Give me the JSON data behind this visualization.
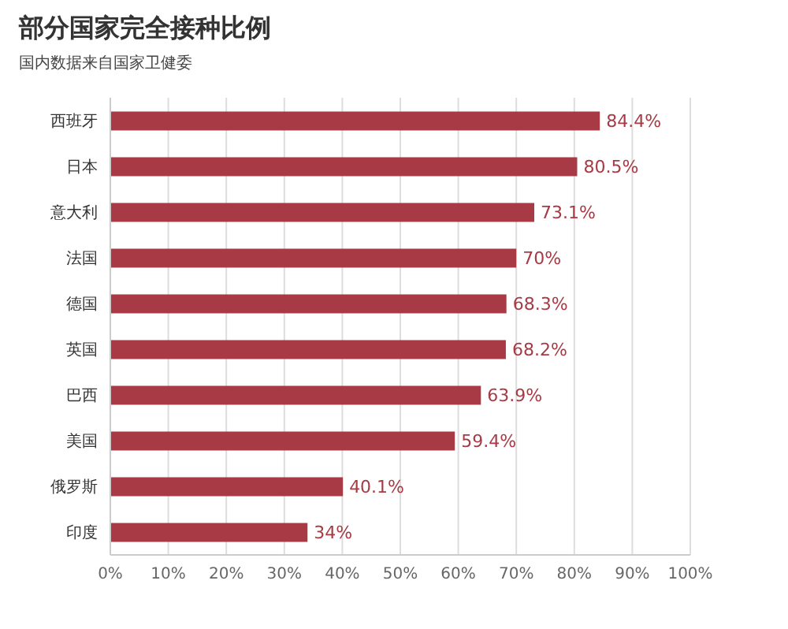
{
  "chart_data": {
    "type": "bar",
    "orientation": "horizontal",
    "title": "部分国家完全接种比例",
    "subtitle": "国内数据来自国家卫健委",
    "categories": [
      "西班牙",
      "日本",
      "意大利",
      "法国",
      "德国",
      "英国",
      "巴西",
      "美国",
      "俄罗斯",
      "印度"
    ],
    "values": [
      84.4,
      80.5,
      73.1,
      70,
      68.3,
      68.2,
      63.9,
      59.4,
      40.1,
      34
    ],
    "value_labels": [
      "84.4%",
      "80.5%",
      "73.1%",
      "70%",
      "68.3%",
      "68.2%",
      "63.9%",
      "59.4%",
      "40.1%",
      "34%"
    ],
    "color": "#a83a45",
    "xlim": [
      0,
      100
    ],
    "xticks": [
      {
        "value": 0,
        "label": "0%"
      },
      {
        "value": 10,
        "label": "10%"
      },
      {
        "value": 20,
        "label": "20%"
      },
      {
        "value": 30,
        "label": "30%"
      },
      {
        "value": 40,
        "label": "40%"
      },
      {
        "value": 50,
        "label": "50%"
      },
      {
        "value": 60,
        "label": "60%"
      },
      {
        "value": 70,
        "label": "70%"
      },
      {
        "value": 80,
        "label": "80%"
      },
      {
        "value": 90,
        "label": "90%"
      },
      {
        "value": 100,
        "label": "100%"
      }
    ],
    "grid": "x"
  }
}
